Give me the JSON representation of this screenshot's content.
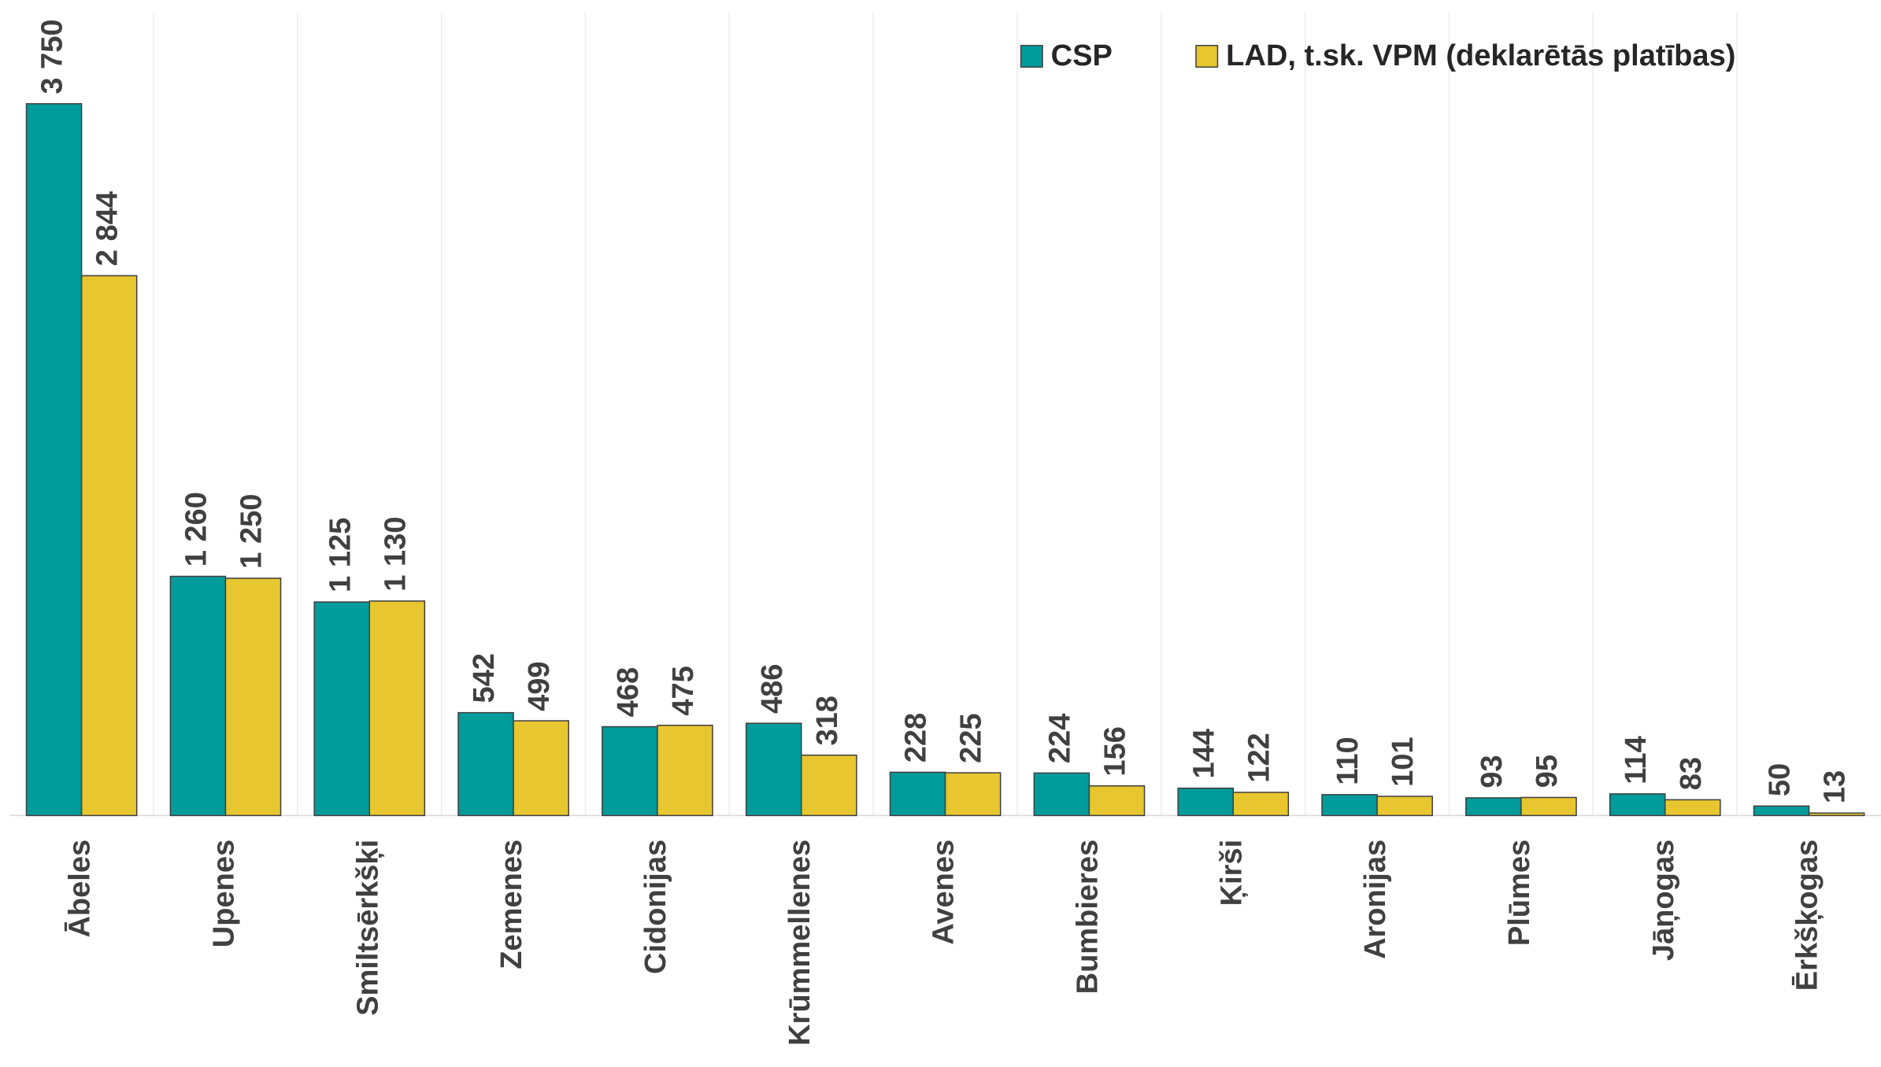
{
  "chart_data": {
    "type": "bar",
    "categories": [
      "Ābeles",
      "Upenes",
      "Smiltsērkšķi",
      "Zemenes",
      "Cidonijas",
      "Krūmmellenes",
      "Avenes",
      "Bumbieres",
      "Ķirši",
      "Aronijas",
      "Plūmes",
      "Jāņogas",
      "Ērkšķogas"
    ],
    "series": [
      {
        "name": "CSP",
        "color": "#009b9b",
        "values": [
          3750,
          1260,
          1125,
          542,
          468,
          486,
          228,
          224,
          144,
          110,
          93,
          114,
          50
        ],
        "value_labels": [
          "3 750",
          "1 260",
          "1 125",
          "542",
          "468",
          "486",
          "228",
          "224",
          "144",
          "110",
          "93",
          "114",
          "50"
        ]
      },
      {
        "name": "LAD, t.sk. VPM (deklarētās platības)",
        "color": "#e8c630",
        "values": [
          2844,
          1250,
          1130,
          499,
          475,
          318,
          225,
          156,
          122,
          101,
          95,
          83,
          13
        ],
        "value_labels": [
          "2 844",
          "1 250",
          "1 130",
          "499",
          "475",
          "318",
          "225",
          "156",
          "122",
          "101",
          "95",
          "83",
          "13"
        ]
      }
    ],
    "ylim": [
      0,
      4000
    ],
    "legend": "top-right"
  }
}
